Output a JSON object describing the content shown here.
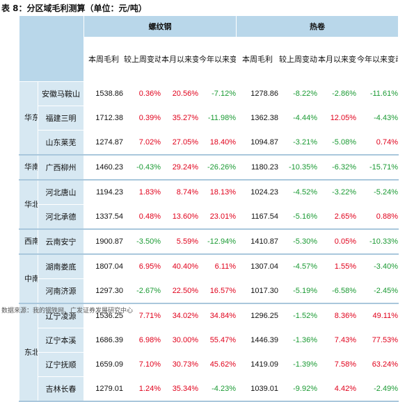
{
  "title": "表 8：分区域毛利测算（单位：元/吨）",
  "groups": {
    "rebar": "螺纹钢",
    "hotcoil": "热卷"
  },
  "sub_headers": [
    "本周毛利",
    "较上周变动",
    "本月以来变动",
    "今年以来变动"
  ],
  "rows": [
    {
      "region": "华东",
      "city": "安徽马鞍山",
      "r": [
        "1538.86",
        "0.36%",
        "20.56%",
        "-7.12%"
      ],
      "h": [
        "1278.86",
        "-8.22%",
        "-2.86%",
        "-11.61%"
      ]
    },
    {
      "region": "",
      "city": "福建三明",
      "r": [
        "1712.38",
        "0.39%",
        "35.27%",
        "-11.98%"
      ],
      "h": [
        "1362.38",
        "-4.44%",
        "12.05%",
        "-4.43%"
      ]
    },
    {
      "region": "",
      "city": "山东莱芜",
      "r": [
        "1274.87",
        "7.02%",
        "27.05%",
        "18.40%"
      ],
      "h": [
        "1094.87",
        "-3.21%",
        "-5.08%",
        "0.74%"
      ]
    },
    {
      "region": "华南",
      "city": "广西柳州",
      "r": [
        "1460.23",
        "-0.43%",
        "29.24%",
        "-26.26%"
      ],
      "h": [
        "1180.23",
        "-10.35%",
        "-6.32%",
        "-15.71%"
      ]
    },
    {
      "region": "华北",
      "city": "河北唐山",
      "r": [
        "1194.23",
        "1.83%",
        "8.74%",
        "18.13%"
      ],
      "h": [
        "1024.23",
        "-4.52%",
        "-3.22%",
        "-5.24%"
      ]
    },
    {
      "region": "",
      "city": "河北承德",
      "r": [
        "1337.54",
        "0.48%",
        "13.60%",
        "23.01%"
      ],
      "h": [
        "1167.54",
        "-5.16%",
        "2.65%",
        "0.88%"
      ]
    },
    {
      "region": "西南",
      "city": "云南安宁",
      "r": [
        "1900.87",
        "-3.50%",
        "5.59%",
        "-12.94%"
      ],
      "h": [
        "1410.87",
        "-5.30%",
        "0.05%",
        "-10.33%"
      ]
    },
    {
      "region": "中南",
      "city": "湖南娄底",
      "r": [
        "1807.04",
        "6.95%",
        "40.40%",
        "6.11%"
      ],
      "h": [
        "1307.04",
        "-4.57%",
        "1.55%",
        "-3.40%"
      ]
    },
    {
      "region": "",
      "city": "河南济源",
      "r": [
        "1297.30",
        "-2.67%",
        "22.50%",
        "16.57%"
      ],
      "h": [
        "1017.30",
        "-5.19%",
        "-6.58%",
        "-2.45%"
      ]
    },
    {
      "region": "东北",
      "city": "辽宁凌源",
      "r": [
        "1536.25",
        "7.71%",
        "34.02%",
        "34.84%"
      ],
      "h": [
        "1296.25",
        "-1.52%",
        "8.36%",
        "49.11%"
      ]
    },
    {
      "region": "",
      "city": "辽宁本溪",
      "r": [
        "1686.39",
        "6.98%",
        "30.00%",
        "55.47%"
      ],
      "h": [
        "1446.39",
        "-1.36%",
        "7.43%",
        "77.53%"
      ]
    },
    {
      "region": "",
      "city": "辽宁抚顺",
      "r": [
        "1659.09",
        "7.10%",
        "30.73%",
        "45.62%"
      ],
      "h": [
        "1419.09",
        "-1.39%",
        "7.58%",
        "63.24%"
      ]
    },
    {
      "region": "",
      "city": "吉林长春",
      "r": [
        "1279.01",
        "1.24%",
        "35.34%",
        "-4.23%"
      ],
      "h": [
        "1039.01",
        "-9.92%",
        "4.42%",
        "-2.49%"
      ]
    }
  ],
  "colors": {
    "positive": "#e0001b",
    "negative": "#1a9a33",
    "header_bg": "#b9d7ea",
    "label_bg": "#d7e8f2"
  },
  "footer": "数据来源：我的钢铁网、广发证券发展研究中心"
}
